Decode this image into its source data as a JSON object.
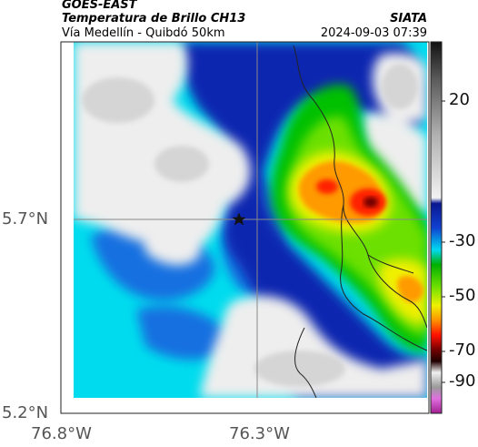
{
  "header": {
    "satellite": "GOES-EAST",
    "product": "Temperatura de Brillo CH13",
    "route": "Vía Medellín - Quibdó 50km",
    "brand": "SIATA",
    "datetime": "2024-09-03 07:39"
  },
  "map": {
    "lat_ticks": [
      "5.7°N",
      "5.2°N"
    ],
    "lon_ticks": [
      "76.8°W",
      "76.3°W"
    ],
    "marker": "star-icon"
  },
  "colorbar": {
    "ticks": [
      "20",
      "-30",
      "-50",
      "-70",
      "-90"
    ],
    "colors": [
      "#111111",
      "#c8c8c8",
      "#1030b0",
      "#00e0f0",
      "#00c000",
      "#e8f000",
      "#ff2000",
      "#400000",
      "#c040c0"
    ]
  }
}
